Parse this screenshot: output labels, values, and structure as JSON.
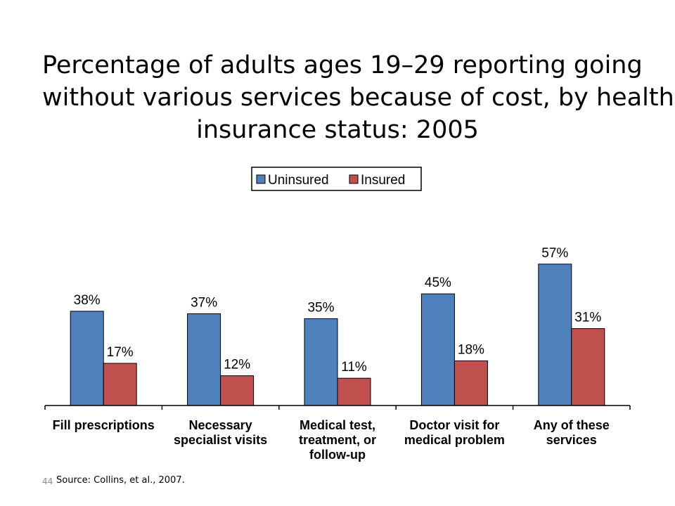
{
  "slide": {
    "title_lines": [
      "Percentage of adults ages 19–29 reporting going",
      "without various services because of cost, by health",
      "insurance status: 2005"
    ],
    "source": "Source: Collins, et al., 2007.",
    "page_number": "44"
  },
  "chart_data": {
    "type": "bar",
    "title": "Percentage of adults ages 19–29 reporting going without various services because of cost, by health insurance status: 2005",
    "categories": [
      [
        "Fill prescriptions"
      ],
      [
        "Necessary",
        "specialist visits"
      ],
      [
        "Medical test,",
        "treatment, or",
        "follow-up"
      ],
      [
        "Doctor visit for",
        "medical problem"
      ],
      [
        "Any of these",
        "services"
      ]
    ],
    "series": [
      {
        "name": "Uninsured",
        "color": "#4f81bd",
        "values": [
          38,
          37,
          35,
          45,
          57
        ],
        "labels": [
          "38%",
          "37%",
          "35%",
          "45%",
          "57%"
        ]
      },
      {
        "name": "Insured",
        "color": "#c0504d",
        "values": [
          17,
          12,
          11,
          18,
          31
        ],
        "labels": [
          "17%",
          "12%",
          "11%",
          "18%",
          "31%"
        ]
      }
    ],
    "ylim": [
      0,
      60
    ],
    "grid": false,
    "legend": "top-center"
  }
}
